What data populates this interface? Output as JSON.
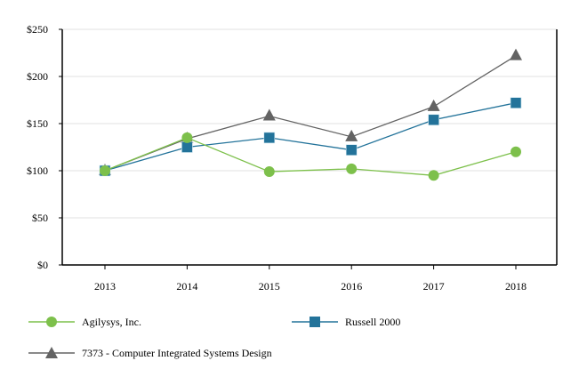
{
  "chart_data": {
    "type": "line",
    "title": "",
    "xlabel": "",
    "ylabel": "",
    "categories": [
      "2013",
      "2014",
      "2015",
      "2016",
      "2017",
      "2018"
    ],
    "ylim": [
      0,
      250
    ],
    "yticks": [
      0,
      50,
      100,
      150,
      200,
      250
    ],
    "ytick_labels": [
      "$0",
      "$50",
      "$100",
      "$150",
      "$200",
      "$250"
    ],
    "grid": true,
    "legend_placement": "bottom",
    "series": [
      {
        "name": "Agilysys, Inc.",
        "values": [
          100,
          135,
          99,
          102,
          95,
          120
        ],
        "color": "#7dc04b",
        "marker": "circle"
      },
      {
        "name": "Russell 2000",
        "values": [
          100,
          125,
          135,
          122,
          154,
          172
        ],
        "color": "#23739a",
        "marker": "square"
      },
      {
        "name": "7373 - Computer Integrated Systems Design",
        "values": [
          100,
          134,
          158,
          136,
          168,
          222
        ],
        "color": "#636363",
        "marker": "triangle"
      }
    ]
  }
}
